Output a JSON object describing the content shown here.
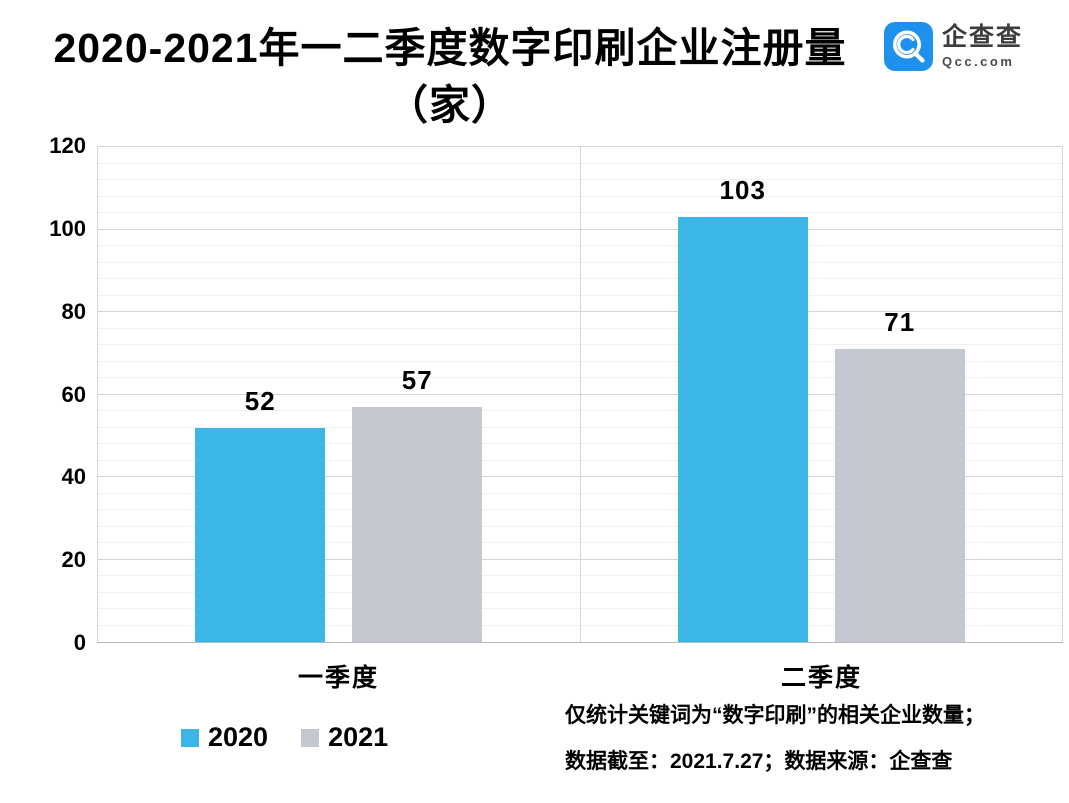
{
  "header": {
    "title_line1": "2020-2021年一二季度数字印刷企业注册量",
    "title_line2": "（家）",
    "logo": {
      "name": "企查查",
      "domain": "Qcc.com",
      "brand_color": "#1e90ee"
    }
  },
  "chart_data": {
    "type": "bar",
    "title": "2020-2021年一二季度数字印刷企业注册量（家）",
    "categories": [
      "一季度",
      "二季度"
    ],
    "series": [
      {
        "name": "2020",
        "color": "#3bb6e6",
        "values": [
          52,
          103
        ]
      },
      {
        "name": "2021",
        "color": "#c3c8d1",
        "values": [
          57,
          71
        ]
      }
    ],
    "ylim": [
      0,
      120
    ],
    "yticks": [
      0,
      20,
      40,
      60,
      80,
      100,
      120
    ],
    "ytick_step": 20,
    "minor_grid_step": 4,
    "grid": true,
    "legend_position": "bottom-left",
    "xlabel": "",
    "ylabel": ""
  },
  "footnote": {
    "line1": "仅统计关键词为“数字印刷”的相关企业数量；",
    "line2": "数据截至：2021.7.27；数据来源：企查查"
  }
}
